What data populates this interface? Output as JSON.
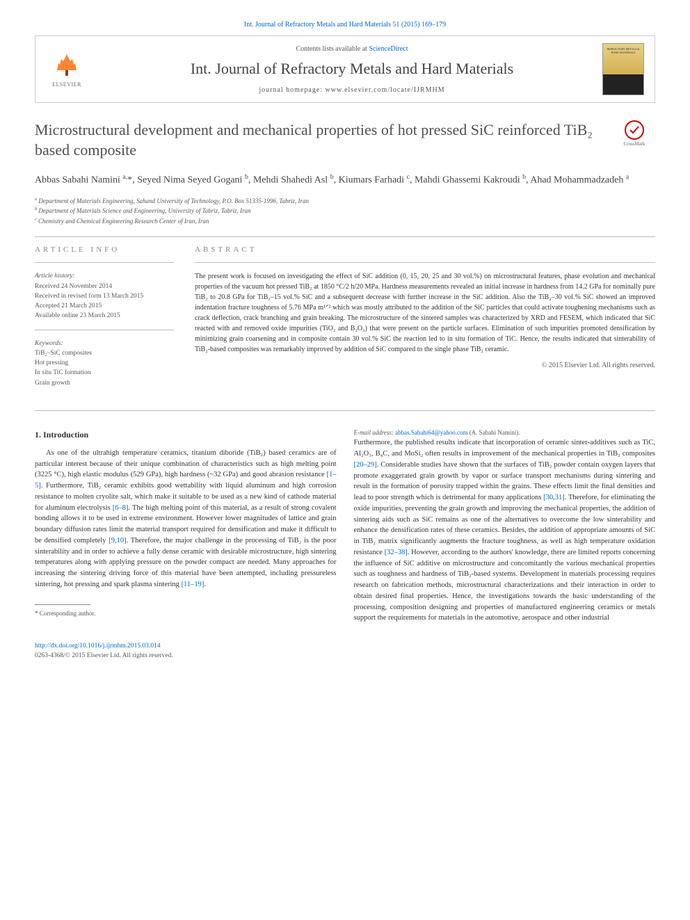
{
  "journal_ref": "Int. Journal of Refractory Metals and Hard Materials 51 (2015) 169–179",
  "header": {
    "contents_prefix": "Contents lists available at ",
    "contents_link": "ScienceDirect",
    "journal_name": "Int. Journal of Refractory Metals and Hard Materials",
    "homepage_label": "journal homepage: ",
    "homepage_url": "www.elsevier.com/locate/IJRMHM",
    "elsevier_label": "ELSEVIER",
    "cover_text": "REFRACTORY METALS & HARD MATERIALS"
  },
  "crossmark_label": "CrossMark",
  "title": "Microstructural development and mechanical properties of hot pressed SiC reinforced TiB₂ based composite",
  "authors_html": "Abbas Sabahi Namini <sup>a,</sup>*, Seyed Nima Seyed Gogani <sup>b</sup>, Mehdi Shahedi Asl <sup>b</sup>, Kiumars Farhadi <sup>c</sup>, Mahdi Ghassemi Kakroudi <sup>b</sup>, Ahad Mohammadzadeh <sup>a</sup>",
  "affiliations": {
    "a": "Department of Materials Engineering, Sahand University of Technology, P.O. Box 51335-1996, Tabriz, Iran",
    "b": "Department of Materials Science and Engineering, University of Tabriz, Tabriz, Iran",
    "c": "Chemistry and Chemical Engineering Research Center of Iran, Iran"
  },
  "article_info": {
    "heading": "article info",
    "history_title": "Article history:",
    "history": [
      "Received 24 November 2014",
      "Received in revised form 13 March 2015",
      "Accepted 21 March 2015",
      "Available online 23 March 2015"
    ],
    "keywords_title": "Keywords:",
    "keywords": [
      "TiB₂–SiC composites",
      "Hot pressing",
      "In situ TiC formation",
      "Grain growth"
    ]
  },
  "abstract": {
    "heading": "abstract",
    "text": "The present work is focused on investigating the effect of SiC addition (0, 15, 20, 25 and 30 vol.%) on microstructural features, phase evolution and mechanical properties of the vacuum hot pressed TiB₂ at 1850 °C/2 h/20 MPa. Hardness measurements revealed an initial increase in hardness from 14.2 GPa for nominally pure TiB₂ to 20.8 GPa for TiB₂–15 vol.% SiC and a subsequent decrease with further increase in the SiC addition. Also the TiB₂–30 vol.% SiC showed an improved indentation fracture toughness of 5.76 MPa m¹ᐟ² which was mostly attributed to the addition of the SiC particles that could activate toughening mechanisms such as crack deflection, crack branching and grain breaking. The microstructure of the sintered samples was characterized by XRD and FESEM, which indicated that SiC reacted with and removed oxide impurities (TiO₂ and B₂O₃) that were present on the particle surfaces. Elimination of such impurities promoted densification by minimizing grain coarsening and in composite contain 30 vol.% SiC the reaction led to in situ formation of TiC. Hence, the results indicated that sinterability of TiB₂-based composites was remarkably improved by addition of SiC compared to the single phase TiB₂ ceramic.",
    "copyright": "© 2015 Elsevier Ltd. All rights reserved."
  },
  "body": {
    "intro_heading": "1. Introduction",
    "col1": "As one of the ultrahigh temperature ceramics, titanium diboride (TiB₂) based ceramics are of particular interest because of their unique combination of characteristics such as high melting point (3225 °C), high elastic modulus (529 GPa), high hardness (~32 GPa) and good abrasion resistance [1–5]. Furthermore, TiB₂ ceramic exhibits good wettability with liquid aluminum and high corrosion resistance to molten cryolite salt, which make it suitable to be used as a new kind of cathode material for aluminum electrolysis [6–8]. The high melting point of this material, as a result of strong covalent bonding allows it to be used in extreme environment. However lower magnitudes of lattice and grain boundary diffusion rates limit the material transport required for densification and make it difficult to be densified completely [9,10]. Therefore, the major challenge in the processing of TiB₂ is the poor sinterability and in order to achieve a fully dense ceramic with desirable microstructure, high sintering temperatures along with applying pressure on the powder compact are needed. Many approaches for increasing the sintering driving force of this material have been attempted, including pressureless sintering, hot pressing and spark plasma sintering [11–19].",
    "col2": "Furthermore, the published results indicate that incorporation of ceramic sinter-additives such as TiC, Al₂O₃, B₄C, and MoSi₂ often results in improvement of the mechanical properties in TiB₂ composites [20–29]. Considerable studies have shown that the surfaces of TiB₂ powder contain oxygen layers that promote exaggerated grain growth by vapor or surface transport mechanisms during sintering and result in the formation of porosity trapped within the grains. These effects limit the final densities and lead to poor strength which is detrimental for many applications [30,31]. Therefore, for eliminating the oxide impurities, preventing the grain growth and improving the mechanical properties, the addition of sintering aids such as SiC remains as one of the alternatives to overcome the low sinterability and enhance the densification rates of these ceramics. Besides, the addition of appropriate amounts of SiC in TiB₂ matrix significantly augments the fracture toughness, as well as high temperature oxidation resistance [32–38]. However, according to the authors' knowledge, there are limited reports concerning the influence of SiC additive on microstructure and concomitantly the various mechanical properties such as toughness and hardness of TiB₂-based systems. Development in materials processing requires research on fabrication methods, microstructural characterizations and their interaction in order to obtain desired final properties. Hence, the investigations towards the basic understanding of the processing, composition designing and properties of manufactured engineering ceramics or metals support the requirements for materials in the automotive, aerospace and other industrial"
  },
  "corresponding": {
    "label": "* Corresponding author.",
    "email_label": "E-mail address: ",
    "email": "abbas.Sabahi64@yahoo.com",
    "email_suffix": " (A. Sabahi Namini)."
  },
  "footer": {
    "doi": "http://dx.doi.org/10.1016/j.ijrmhm.2015.03.014",
    "issn_line": "0263-4368/© 2015 Elsevier Ltd. All rights reserved."
  },
  "refs": [
    "[1–5]",
    "[6–8]",
    "[9,10]",
    "[11–19]",
    "[20–29]",
    "[30,31]",
    "[32–38]"
  ]
}
